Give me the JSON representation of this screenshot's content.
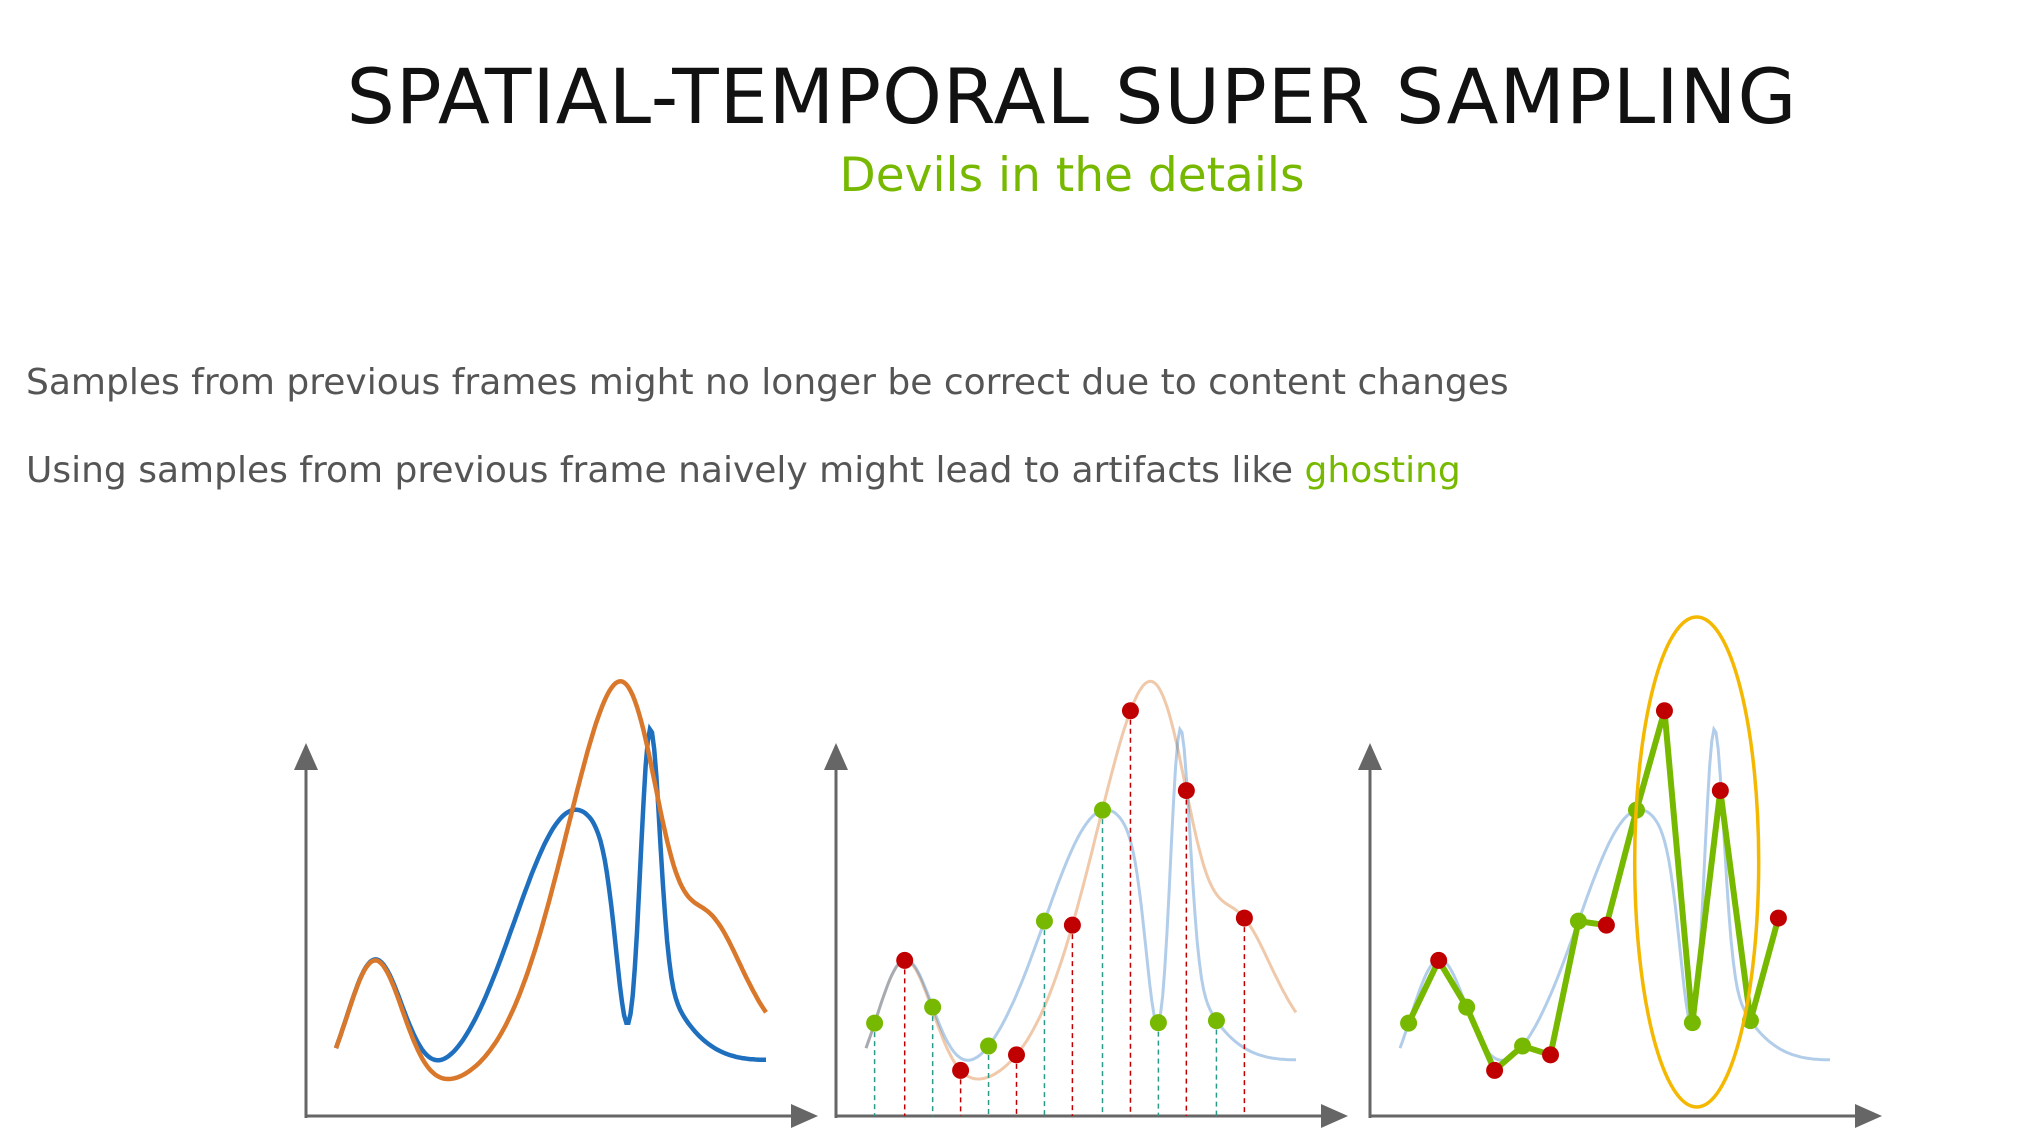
{
  "slide": {
    "title": "SPATIAL-TEMPORAL SUPER SAMPLING",
    "subtitle": "Devils in the details",
    "bullets": [
      {
        "text": "Samples from previous frames might no longer be correct due to content changes"
      },
      {
        "text_before": "Using samples from previous frame naively might lead to artifacts like ",
        "highlight": "ghosting"
      }
    ]
  },
  "colors": {
    "accent_green": "#76b900",
    "current_signal_blue": "#1f6fbf",
    "previous_signal_orange": "#d9772a",
    "stale_sample_red": "#c00000",
    "highlight_ellipse": "#f5b800",
    "axis_gray": "#666666"
  },
  "icons": {
    "panel_1": "two overlaid curves: current frame (blue) vs previous frame (orange)",
    "panel_2": "samples: green = current frame, red = previous frame",
    "panel_3": "reconstructed signal with ghosting, circled"
  }
}
